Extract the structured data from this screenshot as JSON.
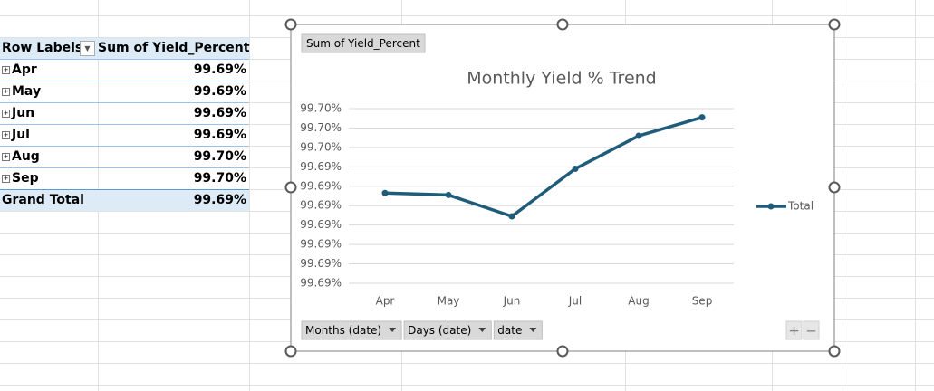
{
  "sheet": {
    "table": {
      "headers": [
        "Row Labels",
        "Sum of Yield_Percent"
      ],
      "rows": [
        [
          "Apr",
          "99.69%"
        ],
        [
          "May",
          "99.69%"
        ],
        [
          "Jun",
          "99.69%"
        ],
        [
          "Jul",
          "99.69%"
        ],
        [
          "Aug",
          "99.70%"
        ],
        [
          "Sep",
          "99.70%"
        ]
      ],
      "total": [
        "Grand Total",
        "99.69%"
      ]
    }
  },
  "chart": {
    "type": "line",
    "title": "Monthly Yield % Trend",
    "field_button": "Sum of Yield_Percent",
    "categories": [
      "Apr",
      "May",
      "Jun",
      "Jul",
      "Aug",
      "Sep"
    ],
    "series": [
      {
        "name": "Total",
        "color": "#1f5c7a",
        "values": [
          99.69453,
          99.69451,
          99.69429,
          99.69478,
          99.69512,
          99.69531
        ]
      }
    ],
    "ylim": [
      99.6936,
      99.6954
    ],
    "yticks": [
      {
        "value": 99.6936,
        "label": "99.69%"
      },
      {
        "value": 99.6938,
        "label": "99.69%"
      },
      {
        "value": 99.694,
        "label": "99.69%"
      },
      {
        "value": 99.6942,
        "label": "99.69%"
      },
      {
        "value": 99.6944,
        "label": "99.69%"
      },
      {
        "value": 99.6946,
        "label": "99.69%"
      },
      {
        "value": 99.6948,
        "label": "99.69%"
      },
      {
        "value": 99.695,
        "label": "99.70%"
      },
      {
        "value": 99.6952,
        "label": "99.70%"
      },
      {
        "value": 99.6954,
        "label": "99.70%"
      }
    ],
    "grid": true,
    "legend": "right",
    "axis_buttons": [
      "Months (date)",
      "Days (date)",
      "date"
    ],
    "zoom_buttons": [
      "+",
      "−"
    ]
  }
}
